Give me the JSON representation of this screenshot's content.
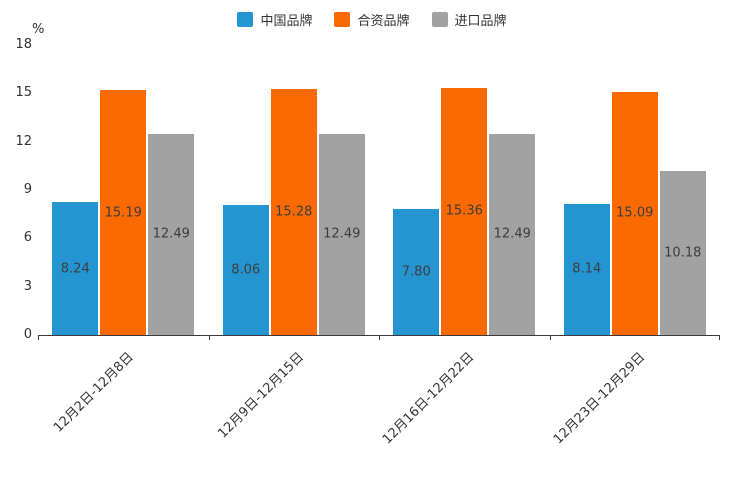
{
  "chart_data": {
    "type": "bar",
    "title": "",
    "xlabel": "",
    "ylabel": "%",
    "ylim": [
      0,
      18
    ],
    "yticks": [
      0,
      3,
      6,
      9,
      12,
      15,
      18
    ],
    "grid": false,
    "legend_position": "top",
    "value_label_format": "2-decimals",
    "categories": [
      "12月2日-12月8日",
      "12月9日-12月15日",
      "12月16日-12月22日",
      "12月23日-12月29日"
    ],
    "series": [
      {
        "name": "中国品牌",
        "color": "#2595D2",
        "values": [
          8.24,
          8.06,
          7.8,
          8.14
        ]
      },
      {
        "name": "合资品牌",
        "color": "#FB6A02",
        "values": [
          15.19,
          15.28,
          15.36,
          15.09
        ]
      },
      {
        "name": "进口品牌",
        "color": "#A2A2A2",
        "values": [
          12.49,
          12.49,
          12.49,
          10.18
        ]
      }
    ]
  }
}
